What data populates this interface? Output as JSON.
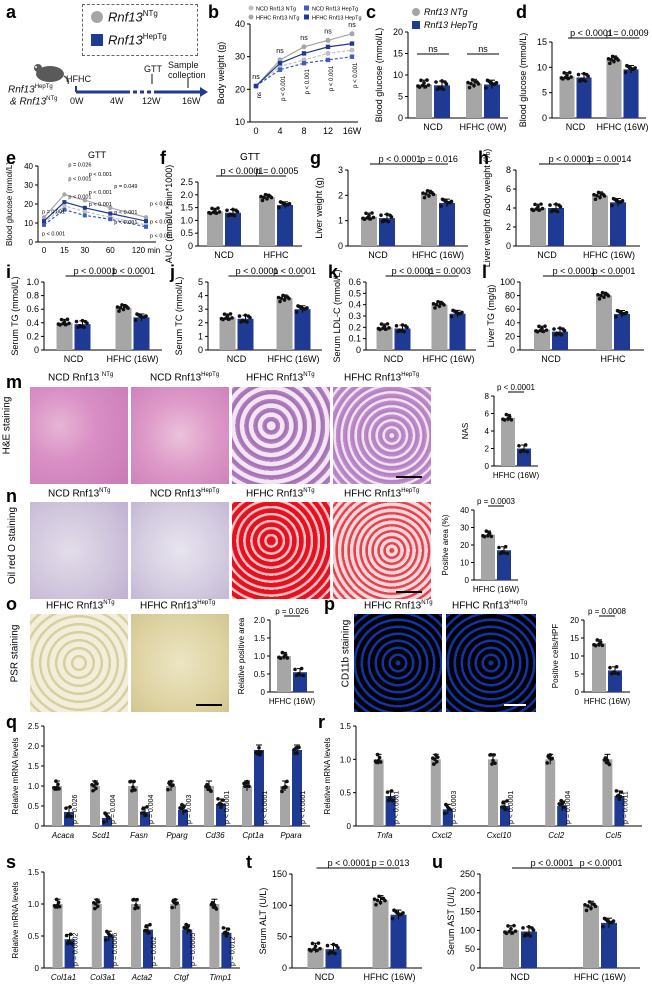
{
  "figure": {
    "panel_letters": [
      "a",
      "b",
      "c",
      "d",
      "e",
      "f",
      "g",
      "h",
      "i",
      "j",
      "k",
      "l",
      "m",
      "n",
      "o",
      "p",
      "q",
      "r",
      "s",
      "t",
      "u"
    ],
    "colors": {
      "ntg": "#a6a6a6",
      "heptg": "#1f3a93",
      "dot": "#111111",
      "ntg_light": "#bfbfbf",
      "heptg_line": "#3a5fbf"
    }
  },
  "panel_a": {
    "legend_ntg_gene": "Rnf13",
    "legend_ntg_sup": "NTg",
    "legend_hep_gene": "Rnf13",
    "legend_hep_sup": "HepTg",
    "mouse_label_1": "Rnf13",
    "mouse_label_1_sup": "HepTg",
    "mouse_label_2": "& Rnf13",
    "mouse_label_2_sup": "NTg",
    "diet": "HFHC",
    "gtt": "GTT",
    "sample": "Sample collection",
    "timepoints": [
      "0W",
      "4W",
      "12W",
      "16W"
    ]
  },
  "chart_data": [
    {
      "id": "b",
      "type": "line",
      "ylabel": "Body weight (g)",
      "x": [
        0,
        4,
        8,
        12,
        16
      ],
      "xticks": [
        "0",
        "4",
        "8",
        "12",
        "16W"
      ],
      "ylim": [
        10,
        40
      ],
      "yticks": [
        10,
        20,
        30,
        40
      ],
      "series": [
        {
          "name": "NCD Rnf13 NTg",
          "values": [
            21,
            27,
            29,
            31,
            32
          ]
        },
        {
          "name": "NCD Rnf13 HepTg",
          "values": [
            21,
            26,
            28,
            29,
            30
          ]
        },
        {
          "name": "HFHC Rnf13 NTg",
          "values": [
            21,
            29,
            33,
            35,
            37
          ]
        },
        {
          "name": "HFHC Rnf13 HepTg",
          "values": [
            21,
            28,
            31,
            33,
            34
          ]
        }
      ],
      "legend": [
        "NCD Rnf13 NTg",
        "NCD Rnf13 HepTg",
        "HFHC Rnf13 NTg",
        "HFHC Rnf13 HepTg"
      ],
      "annotations_top": [
        "ns",
        "ns",
        "ns",
        "ns",
        "ns"
      ],
      "annotations_rot": [
        "ns",
        "p < 0.001",
        "p < 0.001",
        "p < 0.001",
        "p < 0.001"
      ]
    },
    {
      "id": "c",
      "type": "bar",
      "ylabel": "Blood glucose (mmol/L)",
      "categories": [
        "NCD",
        "HFHC (0W)"
      ],
      "ylim": [
        0,
        20
      ],
      "yticks": [
        0,
        5,
        10,
        15,
        20
      ],
      "series": [
        {
          "name": "NTg",
          "values": [
            7.8,
            8.0
          ]
        },
        {
          "name": "HepTg",
          "values": [
            7.6,
            7.8
          ]
        }
      ],
      "brackets": [
        "ns",
        "ns"
      ],
      "legend": [
        "Rnf13 NTg",
        "Rnf13 HepTg"
      ]
    },
    {
      "id": "d",
      "type": "bar",
      "ylabel": "Blood glucose (mmol/L)",
      "categories": [
        "NCD",
        "HFHC (16W)"
      ],
      "ylim": [
        0,
        15
      ],
      "yticks": [
        0,
        5,
        10,
        15
      ],
      "series": [
        {
          "name": "NTg",
          "values": [
            8.2,
            11.5
          ]
        },
        {
          "name": "HepTg",
          "values": [
            8.0,
            9.6
          ]
        }
      ],
      "brackets": [
        "p < 0.0001",
        "p = 0.0009"
      ]
    },
    {
      "id": "e",
      "type": "line",
      "title": "GTT",
      "ylabel": "Blood glucose (mmol/L)",
      "x": [
        0,
        15,
        30,
        60,
        120
      ],
      "xticks": [
        "0",
        "15",
        "30",
        "60",
        "120 min"
      ],
      "ylim": [
        0,
        40
      ],
      "yticks": [
        0,
        10,
        20,
        30,
        40
      ],
      "series": [
        {
          "name": "NCD NTg",
          "values": [
            10,
            19,
            16,
            13,
            9
          ]
        },
        {
          "name": "NCD HepTg",
          "values": [
            9,
            17,
            14,
            12,
            8
          ]
        },
        {
          "name": "HFHC NTg",
          "values": [
            13,
            25,
            22,
            18,
            13
          ]
        },
        {
          "name": "HFHC HepTg",
          "values": [
            11,
            21,
            18,
            15,
            11
          ]
        }
      ],
      "annotations": [
        "p = 0.026",
        "p < 0.001",
        "p < 0.001",
        "p = 0.049",
        "p < 0.001",
        "p = 0.001",
        "p < 0.001",
        "p < 0.001",
        "p < 0.001",
        "p < 0.001",
        "p < 0.001",
        "p < 0.001",
        "p < 0.001",
        "p < 0.001"
      ]
    },
    {
      "id": "f",
      "type": "bar",
      "title": "GTT",
      "ylabel": "AUC (mmol/L*min*1000)",
      "categories": [
        "NCD",
        "HFHC"
      ],
      "ylim": [
        0,
        2.5
      ],
      "yticks": [
        "0",
        "0.5",
        "1.0",
        "1.5",
        "2.0",
        "2.5"
      ],
      "series": [
        {
          "name": "NTg",
          "values": [
            1.35,
            1.9
          ]
        },
        {
          "name": "HepTg",
          "values": [
            1.3,
            1.6
          ]
        }
      ],
      "brackets": [
        "p < 0.0001",
        "p = 0.0005"
      ]
    },
    {
      "id": "g",
      "type": "bar",
      "ylabel": "Liver weight (g)",
      "categories": [
        "NCD",
        "HFHC (16W)"
      ],
      "ylim": [
        0,
        3
      ],
      "yticks": [
        0,
        1,
        2,
        3
      ],
      "series": [
        {
          "name": "NTg",
          "values": [
            1.15,
            2.05
          ]
        },
        {
          "name": "HepTg",
          "values": [
            1.1,
            1.7
          ]
        }
      ],
      "brackets": [
        "p < 0.0001",
        "p = 0.016"
      ]
    },
    {
      "id": "h",
      "type": "bar",
      "ylabel": "Liver weight /Body weight (%)",
      "categories": [
        "NCD",
        "HFHC (16W)"
      ],
      "ylim": [
        0,
        8
      ],
      "yticks": [
        0,
        2,
        4,
        6,
        8
      ],
      "series": [
        {
          "name": "NTg",
          "values": [
            4.0,
            5.3
          ]
        },
        {
          "name": "HepTg",
          "values": [
            4.0,
            4.6
          ]
        }
      ],
      "brackets": [
        "p < 0.0001",
        "p = 0.0014"
      ]
    },
    {
      "id": "i",
      "type": "bar",
      "ylabel": "Serum TG (mmol/L)",
      "categories": [
        "NCD",
        "HFHC (16W)"
      ],
      "ylim": [
        0,
        1.0
      ],
      "yticks": [
        "0",
        "0.2",
        "0.4",
        "0.6",
        "0.8",
        "1.0"
      ],
      "series": [
        {
          "name": "NTg",
          "values": [
            0.4,
            0.62
          ]
        },
        {
          "name": "HepTg",
          "values": [
            0.38,
            0.48
          ]
        }
      ],
      "brackets": [
        "p < 0.0001",
        "p < 0.0001"
      ]
    },
    {
      "id": "j",
      "type": "bar",
      "ylabel": "Serum TC (mmol/L)",
      "categories": [
        "NCD",
        "HFHC (16W)"
      ],
      "ylim": [
        0,
        5
      ],
      "yticks": [
        0,
        1,
        2,
        3,
        4,
        5
      ],
      "series": [
        {
          "name": "NTg",
          "values": [
            2.4,
            3.8
          ]
        },
        {
          "name": "HepTg",
          "values": [
            2.3,
            3.0
          ]
        }
      ],
      "brackets": [
        "p < 0.0001",
        "p < 0.0001"
      ]
    },
    {
      "id": "k",
      "type": "bar",
      "ylabel": "Serum LDL-C (mmol/L)",
      "categories": [
        "NCD",
        "HFHC (16W)"
      ],
      "ylim": [
        0,
        0.6
      ],
      "yticks": [
        "0",
        "0.1",
        "0.2",
        "0.3",
        "0.4",
        "0.5",
        "0.6"
      ],
      "series": [
        {
          "name": "NTg",
          "values": [
            0.2,
            0.4
          ]
        },
        {
          "name": "HepTg",
          "values": [
            0.19,
            0.32
          ]
        }
      ],
      "brackets": [
        "p < 0.0001",
        "p = 0.0003"
      ]
    },
    {
      "id": "l",
      "type": "bar",
      "ylabel": "Liver TG (mg/g)",
      "categories": [
        "NCD",
        "HFHC"
      ],
      "ylim": [
        0,
        100
      ],
      "yticks": [
        0,
        20,
        40,
        60,
        80,
        100
      ],
      "series": [
        {
          "name": "NTg",
          "values": [
            30,
            80
          ]
        },
        {
          "name": "HepTg",
          "values": [
            27,
            53
          ]
        }
      ],
      "brackets": [
        "p < 0.0001",
        "p < 0.0001"
      ]
    },
    {
      "id": "m",
      "type": "bar",
      "ylabel": "NAS",
      "categories": [
        "HFHC (16W)"
      ],
      "ylim": [
        0,
        8
      ],
      "yticks": [
        0,
        2,
        4,
        6,
        8
      ],
      "series": [
        {
          "name": "NTg",
          "values": [
            5.5
          ]
        },
        {
          "name": "HepTg",
          "values": [
            2.0
          ]
        }
      ],
      "brackets": [
        "p < 0.0001"
      ]
    },
    {
      "id": "n",
      "type": "bar",
      "ylabel": "Positive area (%)",
      "categories": [
        "HFHC (16W)"
      ],
      "ylim": [
        0,
        40
      ],
      "yticks": [
        0,
        10,
        20,
        30,
        40
      ],
      "series": [
        {
          "name": "NTg",
          "values": [
            26
          ]
        },
        {
          "name": "HepTg",
          "values": [
            17
          ]
        }
      ],
      "brackets": [
        "p = 0.0003"
      ]
    },
    {
      "id": "o",
      "type": "bar",
      "ylabel": "Relative positive area",
      "categories": [
        "HFHC (16W)"
      ],
      "ylim": [
        0,
        2.0
      ],
      "yticks": [
        "0",
        "0.5",
        "1.0",
        "1.5",
        "2.0"
      ],
      "series": [
        {
          "name": "NTg",
          "values": [
            1.0
          ]
        },
        {
          "name": "HepTg",
          "values": [
            0.55
          ]
        }
      ],
      "brackets": [
        "p = 0.026"
      ]
    },
    {
      "id": "p",
      "type": "bar",
      "ylabel": "Positive cells/HPF",
      "categories": [
        "HFHC (16W)"
      ],
      "ylim": [
        0,
        20
      ],
      "yticks": [
        0,
        5,
        10,
        15,
        20
      ],
      "series": [
        {
          "name": "NTg",
          "values": [
            13.5
          ]
        },
        {
          "name": "HepTg",
          "values": [
            6
          ]
        }
      ],
      "brackets": [
        "p = 0.0008"
      ]
    },
    {
      "id": "q",
      "type": "bar",
      "ylabel": "Relative mRNA levels",
      "categories": [
        "Acaca",
        "Scd1",
        "Fasn",
        "Pparg",
        "Cd36",
        "Cpt1a",
        "Ppara"
      ],
      "ylim": [
        0,
        2.5
      ],
      "yticks": [
        "0",
        "0.5",
        "1.0",
        "1.5",
        "2.0",
        "2.5"
      ],
      "series": [
        {
          "name": "NTg",
          "values": [
            1.0,
            1.0,
            1.0,
            1.0,
            1.0,
            1.0,
            1.0
          ]
        },
        {
          "name": "HepTg",
          "values": [
            0.35,
            0.2,
            0.35,
            0.4,
            0.55,
            1.9,
            1.9
          ]
        }
      ],
      "pvalues": [
        "p = 0.026",
        "p = 0.004",
        "p = 0.004",
        "p = 0.003",
        "p < 0.0001",
        "p < 0.0001",
        "p < 0.0001"
      ]
    },
    {
      "id": "r",
      "type": "bar",
      "ylabel": "Relative mRNA levels",
      "categories": [
        "Tnfa",
        "Cxcl2",
        "Cxcl10",
        "Ccl2",
        "Ccl5"
      ],
      "ylim": [
        0,
        1.5
      ],
      "yticks": [
        "0",
        "0.5",
        "1.0",
        "1.5"
      ],
      "series": [
        {
          "name": "NTg",
          "values": [
            1.0,
            1.0,
            1.0,
            1.0,
            1.0
          ]
        },
        {
          "name": "HepTg",
          "values": [
            0.45,
            0.25,
            0.3,
            0.3,
            0.45
          ]
        }
      ],
      "pvalues": [
        "p < 0.0001",
        "p = 0.0003",
        "p < 0.0001",
        "p = 0.0004",
        "p = 0.0011"
      ]
    },
    {
      "id": "s",
      "type": "bar",
      "ylabel": "Relative mRNA levels",
      "categories": [
        "Col1a1",
        "Col3a1",
        "Acta2",
        "Ctgf",
        "Timp1"
      ],
      "ylim": [
        0,
        1.5
      ],
      "yticks": [
        "0",
        "0.5",
        "1.0",
        "1.5"
      ],
      "series": [
        {
          "name": "NTg",
          "values": [
            1.0,
            1.0,
            1.0,
            1.0,
            1.0
          ]
        },
        {
          "name": "HepTg",
          "values": [
            0.45,
            0.5,
            0.6,
            0.6,
            0.55
          ]
        }
      ],
      "pvalues": [
        "p = 0.0002",
        "p = 0.0006",
        "p = 0.002",
        "p = 0.0005",
        "p = 0.012"
      ]
    },
    {
      "id": "t",
      "type": "bar",
      "ylabel": "Serum ALT (U/L)",
      "categories": [
        "NCD",
        "HFHC (16W)"
      ],
      "ylim": [
        0,
        150
      ],
      "yticks": [
        0,
        50,
        100,
        150
      ],
      "series": [
        {
          "name": "NTg",
          "values": [
            32,
            108
          ]
        },
        {
          "name": "HepTg",
          "values": [
            30,
            85
          ]
        }
      ],
      "brackets": [
        "p < 0.0001",
        "p = 0.013"
      ]
    },
    {
      "id": "u",
      "type": "bar",
      "ylabel": "Serum AST (U/L)",
      "categories": [
        "NCD",
        "HFHC (16W)"
      ],
      "ylim": [
        0,
        250
      ],
      "yticks": [
        0,
        50,
        100,
        150,
        200,
        250
      ],
      "series": [
        {
          "name": "NTg",
          "values": [
            100,
            165
          ]
        },
        {
          "name": "HepTg",
          "values": [
            97,
            120
          ]
        }
      ],
      "brackets": [
        "p < 0.0001",
        "p < 0.0001"
      ]
    }
  ],
  "histology": {
    "m_titles": [
      "NCD Rnf13",
      "NCD Rnf13",
      "HFHC Rnf13",
      "HFHC Rnf13"
    ],
    "m_sups": [
      "NTg",
      "HepTg",
      "NTg",
      "HepTg"
    ],
    "m_side": "H&E staining",
    "n_titles": [
      "NCD Rnf13",
      "NCD Rnf13",
      "HFHC Rnf13",
      "HFHC Rnf13"
    ],
    "n_sups": [
      "NTg",
      "HepTg",
      "NTg",
      "HepTg"
    ],
    "n_side": "Oil red O staining",
    "o_titles": [
      "HFHC Rnf13",
      "HFHC Rnf13"
    ],
    "o_sups": [
      "NTg",
      "HepTg"
    ],
    "o_side": "PSR staining",
    "p_titles": [
      "HFHC Rnf13",
      "HFHC Rnf13"
    ],
    "p_sups": [
      "NTg",
      "HepTg"
    ],
    "p_side": "CD11b staining"
  }
}
